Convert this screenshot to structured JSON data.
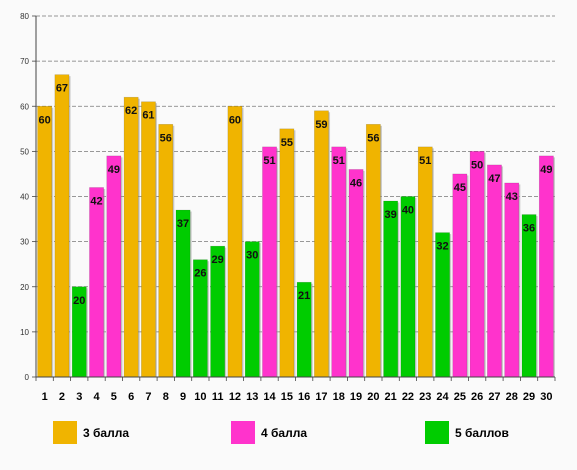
{
  "chart_data": {
    "type": "bar",
    "categories": [
      "1",
      "2",
      "3",
      "4",
      "5",
      "6",
      "7",
      "8",
      "9",
      "10",
      "11",
      "12",
      "13",
      "14",
      "15",
      "16",
      "17",
      "18",
      "19",
      "20",
      "21",
      "22",
      "23",
      "24",
      "25",
      "26",
      "27",
      "28",
      "29",
      "30"
    ],
    "values": [
      60,
      67,
      20,
      42,
      49,
      62,
      61,
      56,
      37,
      26,
      29,
      60,
      30,
      51,
      55,
      21,
      59,
      51,
      46,
      56,
      39,
      40,
      51,
      32,
      45,
      50,
      47,
      43,
      36,
      49
    ],
    "groups": [
      "3 балла",
      "3 балла",
      "5 баллов",
      "4 балла",
      "4 балла",
      "3 балла",
      "3 балла",
      "3 балла",
      "5 баллов",
      "5 баллов",
      "5 баллов",
      "3 балла",
      "5 баллов",
      "4 балла",
      "3 балла",
      "5 баллов",
      "3 балла",
      "4 балла",
      "4 балла",
      "3 балла",
      "5 баллов",
      "5 баллов",
      "3 балла",
      "5 баллов",
      "4 балла",
      "4 балла",
      "4 балла",
      "4 балла",
      "5 баллов",
      "4 балла"
    ],
    "legend": [
      {
        "name": "3 балла",
        "color": "#f0b400"
      },
      {
        "name": "4 балла",
        "color": "#ff33cc"
      },
      {
        "name": "5 баллов",
        "color": "#00cc00"
      }
    ],
    "ylim": [
      0,
      80
    ],
    "yticks": [
      0,
      10,
      20,
      30,
      40,
      50,
      60,
      70,
      80
    ],
    "grid": true,
    "legend_position": "bottom",
    "title": "",
    "xlabel": "",
    "ylabel": ""
  }
}
